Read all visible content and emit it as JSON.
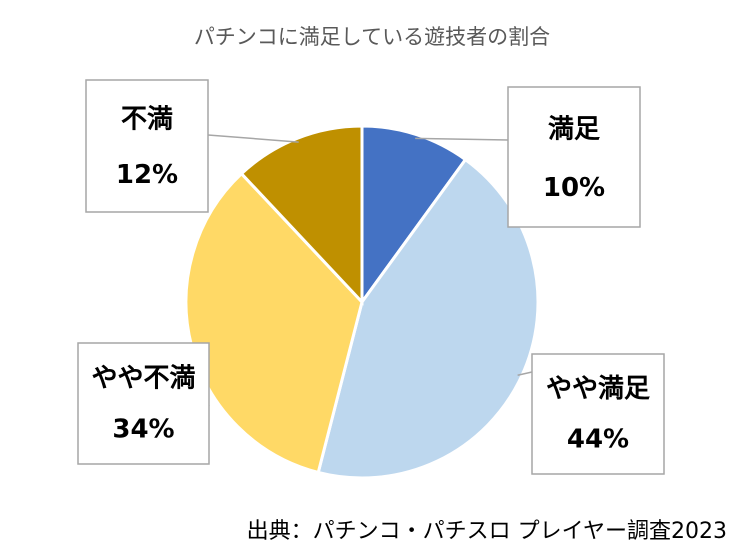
{
  "chart_data": {
    "type": "pie",
    "title": "パチンコに満足している遊技者の割合",
    "categories": [
      "満足",
      "やや満足",
      "やや不満",
      "不満"
    ],
    "values": [
      10,
      44,
      34,
      12
    ],
    "labels": [
      "10%",
      "44%",
      "34%",
      "12%"
    ],
    "colors": [
      "#4472c4",
      "#bdd7ee",
      "#ffd966",
      "#bf9000"
    ],
    "start_angle_deg": 0,
    "direction": "clockwise",
    "legend": "none",
    "source": "出典：パチンコ・パチスロ プレイヤー調査2023"
  }
}
